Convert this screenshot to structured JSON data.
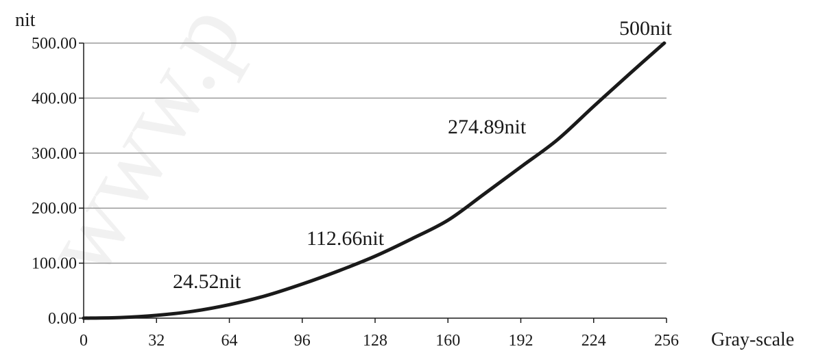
{
  "chart_data": {
    "type": "line",
    "title": "",
    "xlabel": "Gray-scale",
    "ylabel": "nit",
    "xlim": [
      0,
      256
    ],
    "ylim": [
      0,
      500
    ],
    "grid": true,
    "x_ticks": [
      "0",
      "32",
      "64",
      "96",
      "128",
      "160",
      "192",
      "224",
      "256"
    ],
    "y_ticks": [
      "0.00",
      "100.00",
      "200.00",
      "300.00",
      "400.00",
      "500.00"
    ],
    "series": [
      {
        "x": [
          0,
          16,
          32,
          48,
          64,
          80,
          96,
          112,
          128,
          144,
          160,
          176,
          192,
          208,
          224,
          240,
          255
        ],
        "y": [
          0,
          1.1,
          5.1,
          12.5,
          24.52,
          40.8,
          62,
          86,
          112.66,
          144,
          178,
          226,
          274.89,
          324,
          385,
          445,
          500
        ],
        "color": "#1a1a1a"
      }
    ],
    "annotations": [
      "24.52nit",
      "112.66nit",
      "274.89nit",
      "500nit"
    ]
  },
  "watermark": "www.p"
}
